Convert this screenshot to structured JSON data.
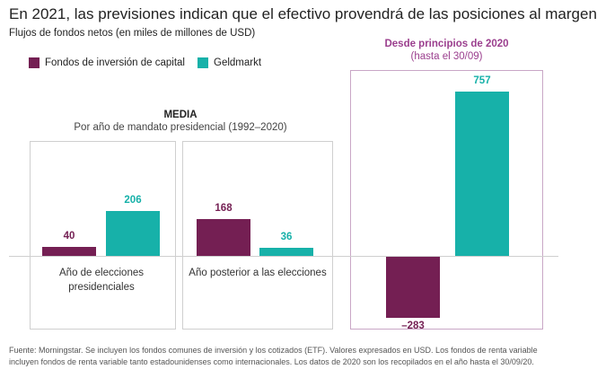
{
  "header": {
    "title": "En 2021, las previsiones indican que el efectivo provendrá de las posiciones al margen",
    "subtitle": "Flujos de fondos netos (en miles de millones de USD)"
  },
  "colors": {
    "equity": "#741f53",
    "money_market": "#17b1a9",
    "highlight": "#9b3f8e"
  },
  "media_header": {
    "title": "MEDIA",
    "subtitle": "Por año de mandato presidencial (1992–2020)"
  },
  "ytd_header": {
    "title": "Desde principios de 2020",
    "subtitle": "(hasta el 30/09)"
  },
  "chart_data": {
    "type": "bar",
    "title": "En 2021, las previsiones indican que el efectivo provendrá de las posiciones al margen",
    "ylabel": "Flujos de fondos netos (en miles de millones de USD)",
    "legend": [
      "Fondos de inversión de capital",
      "Geldmarkt"
    ],
    "panels": [
      {
        "category": "Año de elecciones presidenciales",
        "values": [
          40,
          206
        ]
      },
      {
        "category": "Año posterior a las elecciones",
        "values": [
          168,
          36
        ]
      },
      {
        "category": "Desde principios de 2020",
        "values": [
          -283,
          757
        ]
      }
    ],
    "value_labels": [
      "40",
      "206",
      "168",
      "36",
      "–283",
      "757"
    ]
  },
  "footnote": "Fuente: Morningstar. Se incluyen los fondos comunes de inversión y los cotizados (ETF). Valores expresados en USD. Los fondos de renta variable incluyen fondos de renta variable tanto estadounidenses como internacionales. Los datos de 2020 son los recopilados en el año hasta el 30/09/20."
}
